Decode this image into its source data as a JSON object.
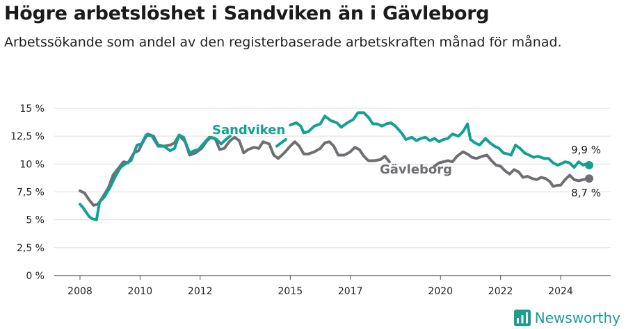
{
  "title": "Högre arbetslöshet i Sandviken än i Gävleborg",
  "subtitle": "Arbetssökande som andel av den registerbaserade arbetskraften månad för månad.",
  "brand": "Newsworthy",
  "colors": {
    "sandviken": "#11a193",
    "gavleborg": "#6e6e73",
    "grid": "#dcdcdc",
    "brand": "#1a9e8f"
  },
  "chart_data": {
    "type": "line",
    "title": "Högre arbetslöshet i Sandviken än i Gävleborg",
    "subtitle": "Arbetssökande som andel av den registerbaserade arbetskraften månad för månad.",
    "xlabel": "",
    "ylabel": "",
    "xlim": [
      2007.6,
      2025.5
    ],
    "ylim": [
      0,
      15
    ],
    "y_ticks": [
      0,
      2.5,
      5,
      7.5,
      10,
      12.5,
      15
    ],
    "y_tick_labels": [
      "0 %",
      "2,5 %",
      "5 %",
      "7,5 %",
      "10 %",
      "12,5 %",
      "15 %"
    ],
    "x_ticks": [
      2008,
      2010,
      2012,
      2015,
      2017,
      2020,
      2022,
      2024
    ],
    "x_tick_labels": [
      "2008",
      "2010",
      "2012",
      "2015",
      "2017",
      "2020",
      "2022",
      "2024"
    ],
    "grid": "horizontal",
    "legend": "direct-labels",
    "series": [
      {
        "name": "Sandviken",
        "end_label": "9,9 %",
        "segments": [
          [
            [
              2008.0,
              6.4
            ],
            [
              2008.1,
              6.1
            ],
            [
              2008.3,
              5.3
            ],
            [
              2008.4,
              5.1
            ],
            [
              2008.55,
              5.0
            ],
            [
              2008.65,
              6.6
            ],
            [
              2008.8,
              7.0
            ],
            [
              2009.0,
              7.9
            ],
            [
              2009.2,
              9.0
            ],
            [
              2009.35,
              9.7
            ],
            [
              2009.5,
              10.0
            ],
            [
              2009.7,
              10.3
            ],
            [
              2009.9,
              11.7
            ],
            [
              2010.05,
              11.8
            ],
            [
              2010.2,
              12.6
            ],
            [
              2010.4,
              12.5
            ],
            [
              2010.6,
              11.6
            ],
            [
              2010.8,
              11.6
            ],
            [
              2011.0,
              11.2
            ],
            [
              2011.15,
              11.4
            ],
            [
              2011.3,
              12.6
            ],
            [
              2011.45,
              12.4
            ],
            [
              2011.65,
              11.0
            ],
            [
              2011.8,
              11.2
            ],
            [
              2011.95,
              11.3
            ],
            [
              2012.1,
              11.8
            ],
            [
              2012.3,
              12.4
            ],
            [
              2012.45,
              12.3
            ],
            [
              2012.55,
              12.2
            ],
            [
              2012.7,
              11.8
            ],
            [
              2012.85,
              12.2
            ],
            [
              2013.0,
              12.5
            ]
          ],
          [
            [
              2014.55,
              11.6
            ],
            [
              2014.75,
              12.0
            ],
            [
              2014.85,
              12.2
            ]
          ],
          [
            [
              2015.0,
              13.5
            ],
            [
              2015.2,
              13.7
            ],
            [
              2015.35,
              13.4
            ],
            [
              2015.45,
              12.8
            ],
            [
              2015.6,
              12.9
            ],
            [
              2015.8,
              13.4
            ],
            [
              2016.0,
              13.6
            ],
            [
              2016.15,
              14.3
            ],
            [
              2016.35,
              13.9
            ],
            [
              2016.55,
              13.7
            ],
            [
              2016.7,
              13.3
            ],
            [
              2016.9,
              13.7
            ],
            [
              2017.1,
              14.0
            ],
            [
              2017.25,
              14.6
            ],
            [
              2017.45,
              14.6
            ],
            [
              2017.6,
              14.2
            ],
            [
              2017.75,
              13.6
            ],
            [
              2017.9,
              13.6
            ],
            [
              2018.05,
              13.4
            ],
            [
              2018.2,
              13.6
            ],
            [
              2018.35,
              13.7
            ],
            [
              2018.5,
              13.4
            ],
            [
              2018.7,
              12.8
            ],
            [
              2018.85,
              12.2
            ],
            [
              2019.05,
              12.4
            ],
            [
              2019.2,
              12.1
            ],
            [
              2019.35,
              12.3
            ],
            [
              2019.5,
              12.4
            ],
            [
              2019.65,
              12.1
            ],
            [
              2019.8,
              12.3
            ],
            [
              2019.95,
              12.0
            ],
            [
              2020.1,
              12.2
            ],
            [
              2020.25,
              12.3
            ],
            [
              2020.4,
              12.7
            ],
            [
              2020.6,
              12.5
            ],
            [
              2020.75,
              12.9
            ],
            [
              2020.9,
              13.6
            ],
            [
              2021.0,
              12.2
            ],
            [
              2021.15,
              11.9
            ],
            [
              2021.3,
              11.7
            ],
            [
              2021.5,
              12.3
            ],
            [
              2021.65,
              11.9
            ],
            [
              2021.8,
              11.6
            ],
            [
              2021.95,
              11.4
            ],
            [
              2022.1,
              11.0
            ],
            [
              2022.25,
              10.9
            ],
            [
              2022.35,
              10.8
            ],
            [
              2022.5,
              11.7
            ],
            [
              2022.65,
              11.4
            ],
            [
              2022.8,
              11.0
            ],
            [
              2022.95,
              10.8
            ],
            [
              2023.1,
              10.6
            ],
            [
              2023.25,
              10.7
            ],
            [
              2023.45,
              10.5
            ],
            [
              2023.6,
              10.5
            ],
            [
              2023.75,
              10.1
            ],
            [
              2023.9,
              9.9
            ],
            [
              2024.0,
              10.0
            ],
            [
              2024.15,
              10.2
            ],
            [
              2024.3,
              10.1
            ],
            [
              2024.45,
              9.7
            ],
            [
              2024.6,
              10.2
            ],
            [
              2024.75,
              9.9
            ],
            [
              2024.85,
              10.0
            ],
            [
              2024.95,
              9.9
            ]
          ]
        ]
      },
      {
        "name": "Gävleborg",
        "end_label": "8,7 %",
        "segments": [
          [
            [
              2008.0,
              7.6
            ],
            [
              2008.15,
              7.4
            ],
            [
              2008.3,
              6.8
            ],
            [
              2008.45,
              6.3
            ],
            [
              2008.6,
              6.4
            ],
            [
              2008.75,
              7.0
            ],
            [
              2008.95,
              7.9
            ],
            [
              2009.1,
              9.0
            ],
            [
              2009.3,
              9.7
            ],
            [
              2009.45,
              10.2
            ],
            [
              2009.6,
              10.1
            ],
            [
              2009.8,
              11.0
            ],
            [
              2009.95,
              11.2
            ],
            [
              2010.1,
              12.0
            ],
            [
              2010.25,
              12.7
            ],
            [
              2010.45,
              12.5
            ],
            [
              2010.6,
              11.7
            ],
            [
              2010.8,
              11.6
            ],
            [
              2011.0,
              11.7
            ],
            [
              2011.15,
              11.9
            ],
            [
              2011.3,
              12.6
            ],
            [
              2011.5,
              12.0
            ],
            [
              2011.65,
              10.8
            ],
            [
              2011.85,
              11.0
            ],
            [
              2012.05,
              11.4
            ],
            [
              2012.2,
              12.0
            ],
            [
              2012.35,
              12.4
            ],
            [
              2012.5,
              12.3
            ],
            [
              2012.65,
              11.3
            ],
            [
              2012.8,
              11.4
            ],
            [
              2013.0,
              12.1
            ],
            [
              2013.15,
              12.4
            ],
            [
              2013.3,
              12.1
            ],
            [
              2013.45,
              11.0
            ],
            [
              2013.6,
              11.3
            ],
            [
              2013.8,
              11.5
            ],
            [
              2013.95,
              11.4
            ],
            [
              2014.1,
              12.0
            ],
            [
              2014.3,
              11.8
            ],
            [
              2014.45,
              10.8
            ],
            [
              2014.6,
              10.5
            ],
            [
              2014.8,
              11.0
            ],
            [
              2015.0,
              11.6
            ],
            [
              2015.15,
              12.0
            ],
            [
              2015.3,
              11.6
            ],
            [
              2015.45,
              10.9
            ],
            [
              2015.6,
              10.9
            ],
            [
              2015.8,
              11.1
            ],
            [
              2016.0,
              11.4
            ],
            [
              2016.15,
              11.9
            ],
            [
              2016.3,
              12.0
            ],
            [
              2016.45,
              11.6
            ],
            [
              2016.6,
              10.8
            ],
            [
              2016.8,
              10.8
            ],
            [
              2017.0,
              11.1
            ],
            [
              2017.15,
              11.5
            ],
            [
              2017.3,
              11.3
            ],
            [
              2017.45,
              10.7
            ],
            [
              2017.6,
              10.3
            ],
            [
              2017.8,
              10.3
            ],
            [
              2018.0,
              10.4
            ],
            [
              2018.15,
              10.7
            ],
            [
              2018.3,
              10.2
            ]
          ],
          [
            [
              2019.8,
              9.8
            ],
            [
              2019.95,
              10.1
            ],
            [
              2020.1,
              10.2
            ],
            [
              2020.25,
              10.3
            ],
            [
              2020.4,
              10.2
            ],
            [
              2020.55,
              10.7
            ],
            [
              2020.75,
              11.1
            ],
            [
              2020.9,
              10.9
            ],
            [
              2021.05,
              10.6
            ],
            [
              2021.2,
              10.5
            ],
            [
              2021.4,
              10.7
            ],
            [
              2021.55,
              10.8
            ],
            [
              2021.7,
              10.3
            ],
            [
              2021.85,
              9.9
            ],
            [
              2022.0,
              9.8
            ],
            [
              2022.15,
              9.4
            ],
            [
              2022.3,
              9.1
            ],
            [
              2022.45,
              9.5
            ],
            [
              2022.6,
              9.3
            ],
            [
              2022.75,
              8.8
            ],
            [
              2022.9,
              8.9
            ],
            [
              2023.05,
              8.7
            ],
            [
              2023.2,
              8.6
            ],
            [
              2023.35,
              8.8
            ],
            [
              2023.5,
              8.7
            ],
            [
              2023.65,
              8.4
            ],
            [
              2023.75,
              8.0
            ],
            [
              2023.9,
              8.1
            ],
            [
              2024.0,
              8.1
            ],
            [
              2024.15,
              8.6
            ],
            [
              2024.3,
              9.0
            ],
            [
              2024.45,
              8.6
            ],
            [
              2024.6,
              8.5
            ],
            [
              2024.75,
              8.6
            ],
            [
              2024.95,
              8.7
            ]
          ]
        ]
      }
    ]
  }
}
